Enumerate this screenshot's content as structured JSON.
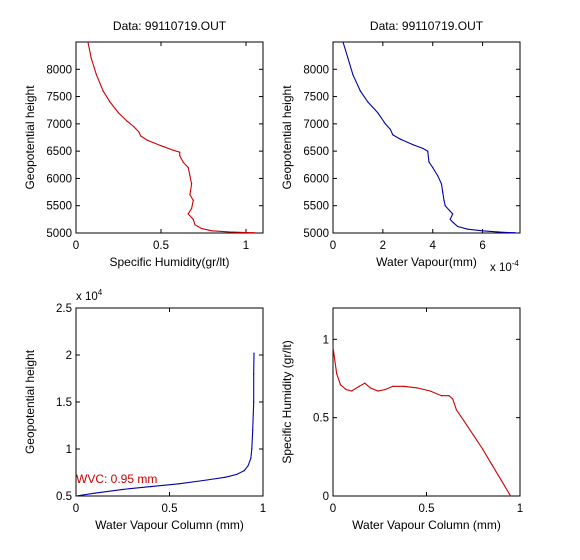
{
  "chart_data": [
    {
      "id": "tl",
      "type": "line",
      "title": "Data: 99110719.OUT",
      "xlabel": "Specific Humidity(gr/lt)",
      "ylabel": "Geopotential height",
      "xlim": [
        0,
        1.1
      ],
      "ylim": [
        5000,
        8500
      ],
      "xticks": [
        0,
        0.5,
        1
      ],
      "xtick_labels": [
        "0",
        "0.5",
        "1"
      ],
      "yticks": [
        5000,
        5500,
        6000,
        6500,
        7000,
        7500,
        8000
      ],
      "ytick_labels": [
        "5000",
        "5500",
        "6000",
        "6500",
        "7000",
        "7500",
        "8000"
      ],
      "grid": false,
      "series": [
        {
          "color": "#cc0000",
          "x": [
            0.07,
            0.09,
            0.12,
            0.16,
            0.2,
            0.25,
            0.3,
            0.34,
            0.37,
            0.38,
            0.42,
            0.5,
            0.57,
            0.61,
            0.61,
            0.63,
            0.66,
            0.67,
            0.68,
            0.67,
            0.69,
            0.68,
            0.66,
            0.69,
            0.7,
            0.74,
            0.8,
            0.9,
            1.0,
            1.05
          ],
          "y": [
            8500,
            8200,
            7900,
            7600,
            7400,
            7200,
            7050,
            6950,
            6850,
            6780,
            6700,
            6600,
            6520,
            6480,
            6420,
            6300,
            6200,
            6050,
            5900,
            5700,
            5600,
            5450,
            5350,
            5250,
            5150,
            5080,
            5040,
            5020,
            5010,
            5005
          ]
        }
      ]
    },
    {
      "id": "tr",
      "type": "line",
      "title": "Data: 99110719.OUT",
      "xlabel": "Water Vapour(mm)",
      "ylabel": "Geopotential height",
      "xscale_label": "x 10",
      "xscale_exp": "-4",
      "xlim": [
        0,
        7.5
      ],
      "ylim": [
        5000,
        8500
      ],
      "xticks": [
        0,
        2,
        4,
        6
      ],
      "xtick_labels": [
        "0",
        "2",
        "4",
        "6"
      ],
      "yticks": [
        5000,
        5500,
        6000,
        6500,
        7000,
        7500,
        8000
      ],
      "ytick_labels": [
        "5000",
        "5500",
        "6000",
        "6500",
        "7000",
        "7500",
        "8000"
      ],
      "grid": false,
      "series": [
        {
          "color": "#0000aa",
          "x": [
            0.4,
            0.6,
            0.8,
            1.1,
            1.4,
            1.8,
            2.1,
            2.3,
            2.4,
            2.7,
            3.2,
            3.6,
            3.8,
            3.85,
            4.0,
            4.2,
            4.35,
            4.4,
            4.45,
            4.5,
            4.7,
            4.8,
            4.7,
            4.8,
            5.0,
            5.4,
            6.0,
            6.6,
            7.0,
            7.3
          ],
          "y": [
            8500,
            8200,
            7900,
            7600,
            7400,
            7200,
            7000,
            6900,
            6800,
            6720,
            6620,
            6550,
            6500,
            6300,
            6200,
            6050,
            5900,
            5750,
            5600,
            5500,
            5400,
            5350,
            5250,
            5200,
            5120,
            5070,
            5040,
            5020,
            5010,
            5005
          ]
        }
      ]
    },
    {
      "id": "bl",
      "type": "line",
      "title": "",
      "xlabel": "Water Vapour Column (mm)",
      "ylabel": "Geopotential height",
      "yscale_label": "x 10",
      "yscale_exp": "4",
      "xlim": [
        0,
        1
      ],
      "ylim": [
        0.5,
        2.5
      ],
      "xticks": [
        0,
        0.5,
        1
      ],
      "xtick_labels": [
        "0",
        "0.5",
        "1"
      ],
      "yticks": [
        0.5,
        1,
        1.5,
        2,
        2.5
      ],
      "ytick_labels": [
        "0.5",
        "1",
        "1.5",
        "2",
        "2.5"
      ],
      "grid": false,
      "annotation": {
        "text": "WVC: 0.95 mm",
        "x": 0,
        "y": 0.7,
        "color": "#cc0000"
      },
      "series": [
        {
          "color": "#0000aa",
          "x": [
            0.0,
            0.1,
            0.25,
            0.4,
            0.55,
            0.7,
            0.8,
            0.86,
            0.9,
            0.92,
            0.935,
            0.94,
            0.945,
            0.95,
            0.95,
            0.952
          ],
          "y": [
            0.5,
            0.53,
            0.57,
            0.6,
            0.63,
            0.67,
            0.7,
            0.73,
            0.77,
            0.82,
            0.9,
            1.0,
            1.2,
            1.5,
            1.8,
            2.02
          ]
        }
      ]
    },
    {
      "id": "br",
      "type": "line",
      "title": "",
      "xlabel": "Water Vapour Column (mm)",
      "ylabel": "Specific Humidity (gr/lt)",
      "xlim": [
        0,
        1
      ],
      "ylim": [
        0,
        1.2
      ],
      "xticks": [
        0,
        0.5,
        1
      ],
      "xtick_labels": [
        "0",
        "0.5",
        "1"
      ],
      "yticks": [
        0,
        0.5,
        1
      ],
      "ytick_labels": [
        "0",
        "0.5",
        "1"
      ],
      "grid": false,
      "series": [
        {
          "color": "#cc0000",
          "x": [
            0.0,
            0.02,
            0.04,
            0.07,
            0.1,
            0.14,
            0.17,
            0.2,
            0.24,
            0.28,
            0.32,
            0.38,
            0.45,
            0.52,
            0.58,
            0.62,
            0.64,
            0.66,
            0.7,
            0.75,
            0.8,
            0.85,
            0.9,
            0.95
          ],
          "y": [
            0.95,
            0.78,
            0.71,
            0.68,
            0.67,
            0.7,
            0.72,
            0.69,
            0.67,
            0.68,
            0.7,
            0.7,
            0.69,
            0.67,
            0.64,
            0.64,
            0.62,
            0.55,
            0.48,
            0.39,
            0.3,
            0.2,
            0.1,
            0.0
          ]
        }
      ]
    }
  ]
}
